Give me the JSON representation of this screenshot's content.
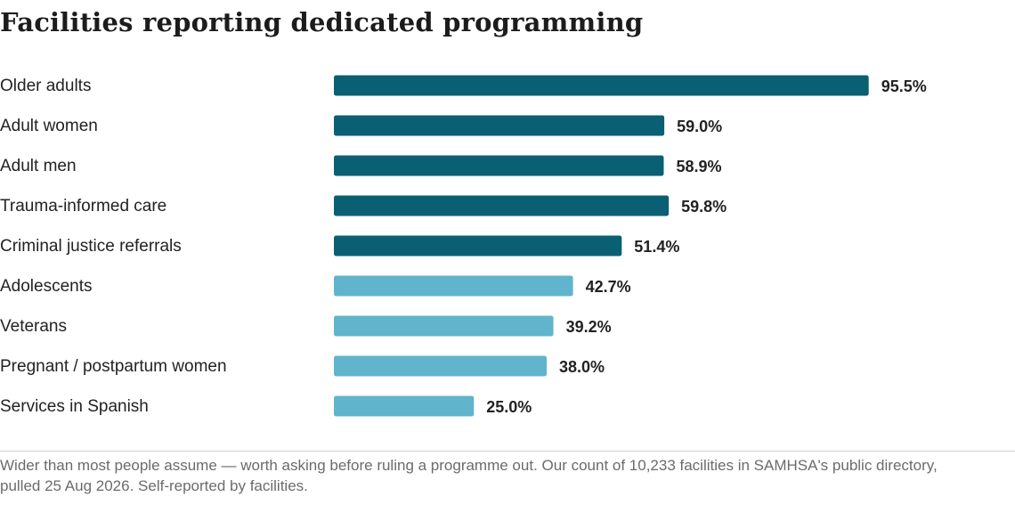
{
  "title": "Facilities reporting dedicated programming",
  "footnote": "Wider than most people assume — worth asking before ruling a programme out. Our count of 10,233 facilities in SAMHSA's public directory, pulled 25 Aug 2026. Self-reported by facilities.",
  "colors": {
    "dark": "#0b5f73",
    "light": "#60b4cc",
    "text": "#222222",
    "muted": "#6b6b6b"
  },
  "chart_data": {
    "type": "bar",
    "orientation": "horizontal",
    "title": "Facilities reporting dedicated programming",
    "xlabel": "",
    "ylabel": "",
    "xlim": [
      0,
      100
    ],
    "grid": false,
    "categories": [
      "Older adults",
      "Adult women",
      "Adult men",
      "Trauma-informed care",
      "Criminal justice referrals",
      "Adolescents",
      "Veterans",
      "Pregnant / postpartum women",
      "Services in Spanish"
    ],
    "values": [
      95.5,
      59.0,
      58.9,
      59.8,
      51.4,
      42.7,
      39.2,
      38.0,
      25.0
    ],
    "value_labels": [
      "95.5%",
      "59.0%",
      "58.9%",
      "59.8%",
      "51.4%",
      "42.7%",
      "39.2%",
      "38.0%",
      "25.0%"
    ],
    "bar_colors": [
      "#0b5f73",
      "#0b5f73",
      "#0b5f73",
      "#0b5f73",
      "#0b5f73",
      "#60b4cc",
      "#60b4cc",
      "#60b4cc",
      "#60b4cc"
    ]
  }
}
